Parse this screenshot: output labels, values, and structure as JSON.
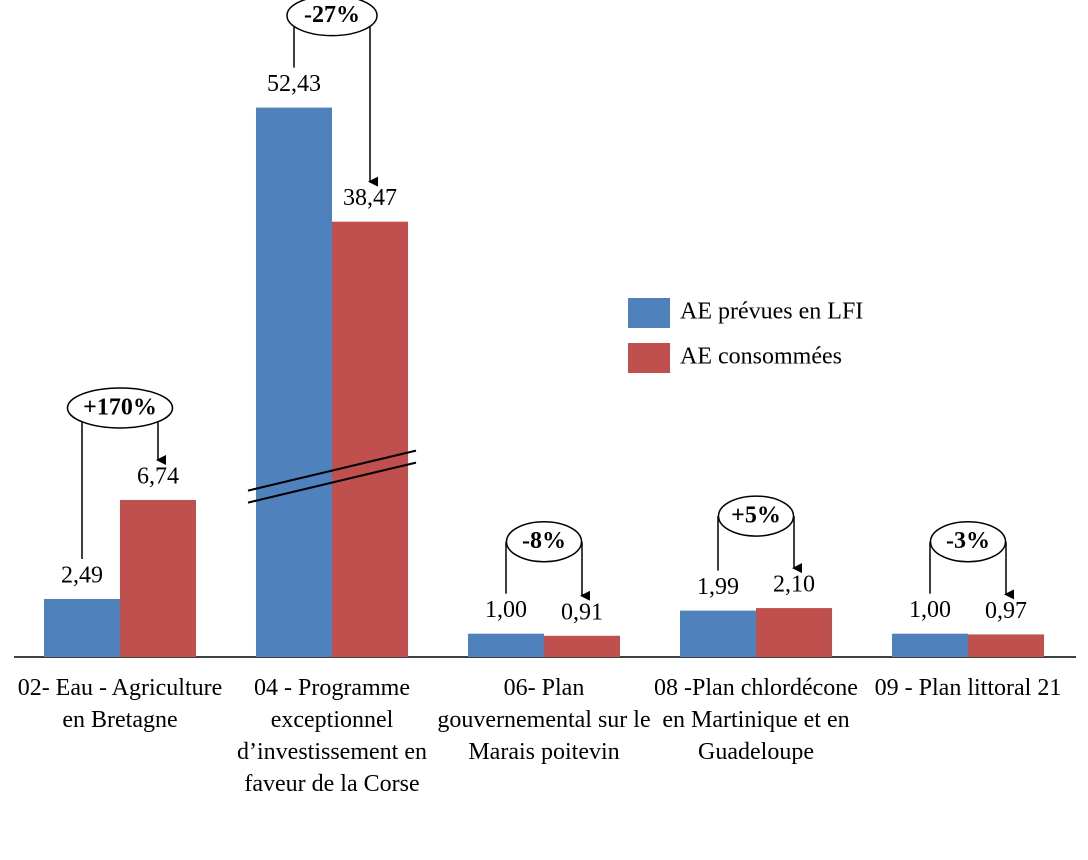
{
  "chart_data": {
    "type": "bar",
    "categories": [
      "02- Eau - Agriculture en Bretagne",
      "04 - Programme exceptionnel d’investissement en faveur de la Corse",
      "06- Plan gouvernemental sur le Marais poitevin",
      "08 -Plan chlordécone en Martinique et en Guadeloupe",
      "09 - Plan littoral 21"
    ],
    "series": [
      {
        "name": "AE prévues en LFI",
        "color": "#4f81bd",
        "values": [
          2.49,
          52.43,
          1.0,
          1.99,
          1.0
        ],
        "value_labels": [
          "2,49",
          "52,43",
          "1,00",
          "1,99",
          "1,00"
        ]
      },
      {
        "name": "AE consommées",
        "color": "#c0504d",
        "values": [
          6.74,
          38.47,
          0.91,
          2.1,
          0.97
        ],
        "value_labels": [
          "6,74",
          "38,47",
          "0,91",
          "2,10",
          "0,97"
        ]
      }
    ],
    "annotations": [
      "+170%",
      "-27%",
      "-8%",
      "+5%",
      "-3%"
    ],
    "legend": "right"
  }
}
